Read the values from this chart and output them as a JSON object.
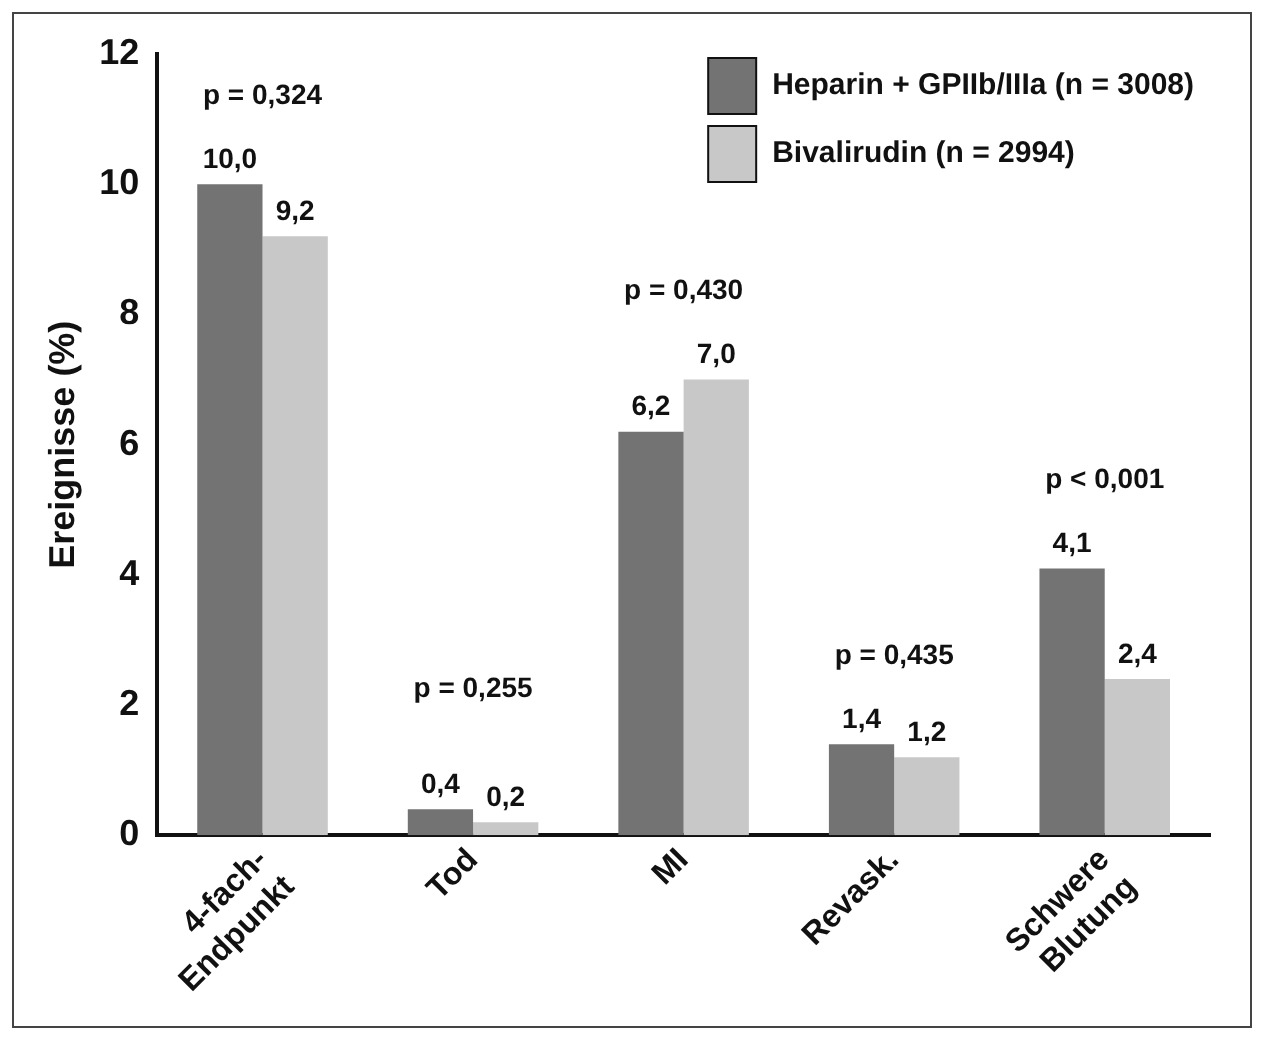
{
  "chart_data": {
    "type": "bar",
    "ylabel": "Ereignisse (%)",
    "categories": [
      "4-fach-Endpunkt",
      "Tod",
      "MI",
      "Revask.",
      "Schwere Blutung"
    ],
    "series": [
      {
        "name": "Heparin + GPIIb/IIIa (n = 3008)",
        "color": "#737373",
        "values": [
          10.0,
          0.4,
          6.2,
          1.4,
          4.1
        ],
        "value_labels": [
          "10,0",
          "0,4",
          "6,2",
          "1,4",
          "4,1"
        ]
      },
      {
        "name": "Bivalirudin (n = 2994)",
        "color": "#c8c8c8",
        "values": [
          9.2,
          0.2,
          7.0,
          1.2,
          2.4
        ],
        "value_labels": [
          "9,2",
          "0,2",
          "7,0",
          "1,2",
          "2,4"
        ]
      }
    ],
    "ylim": [
      0,
      12
    ],
    "yticks": [
      0,
      2,
      4,
      6,
      8,
      10,
      12
    ],
    "grid": false,
    "legend": "top right",
    "annotations": [
      "p = 0,324",
      "p = 0,255",
      "p = 0,430",
      "p = 0,435",
      "p < 0,001"
    ]
  }
}
